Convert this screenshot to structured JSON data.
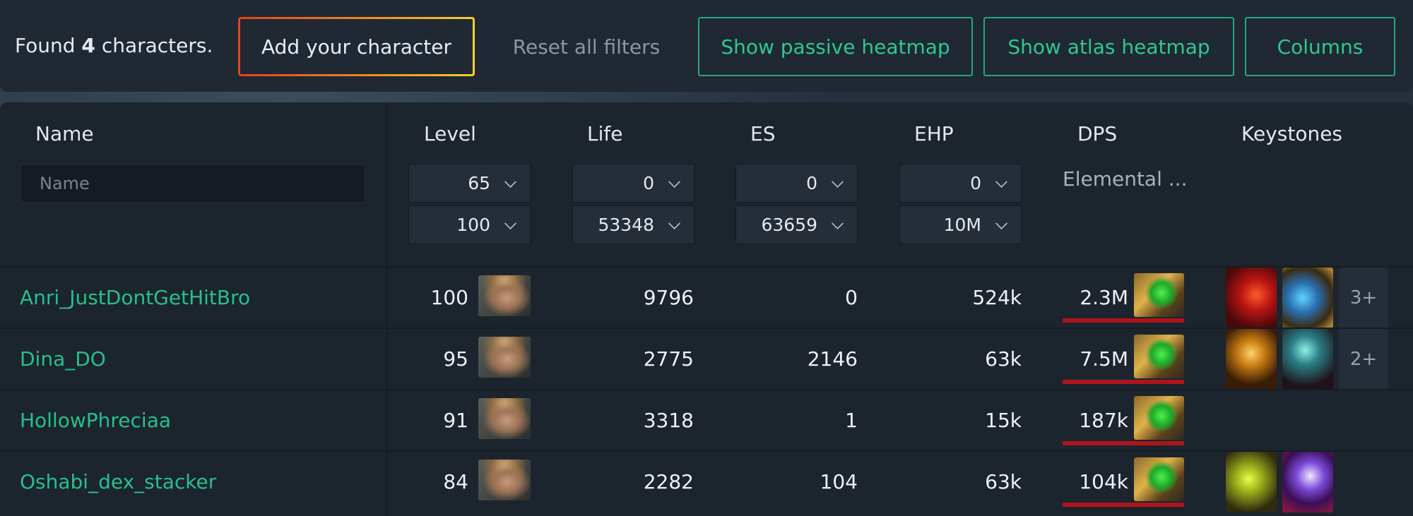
{
  "toolbar": {
    "found_prefix": "Found",
    "found_count": "4",
    "found_suffix": "characters.",
    "add_label": "Add your character",
    "reset_label": "Reset all filters",
    "passive_label": "Show passive heatmap",
    "atlas_label": "Show atlas heatmap",
    "columns_label": "Columns"
  },
  "table": {
    "headers": {
      "name": "Name",
      "level": "Level",
      "life": "Life",
      "es": "ES",
      "ehp": "EHP",
      "dps": "DPS",
      "keystones": "Keystones"
    },
    "filters": {
      "name_placeholder": "Name",
      "level_min": "65",
      "level_max": "100",
      "life_min": "0",
      "life_max": "53348",
      "es_min": "0",
      "es_max": "63659",
      "ehp_min": "0",
      "ehp_max": "10M",
      "dps_filter": "Elemental ..."
    },
    "rows": [
      {
        "name": "Anri_JustDontGetHitBro",
        "level": "100",
        "life": "9796",
        "es": "0",
        "ehp": "524k",
        "dps": "2.3M",
        "keystones": [
          "red-figure-keystone-icon",
          "blue-axe-keystone-icon"
        ],
        "more": "3+"
      },
      {
        "name": "Dina_DO",
        "level": "95",
        "life": "2775",
        "es": "2146",
        "ehp": "63k",
        "dps": "7.5M",
        "keystones": [
          "golden-figure-keystone-icon",
          "teal-swirl-keystone-icon"
        ],
        "more": "2+"
      },
      {
        "name": "HollowPhreciaa",
        "level": "91",
        "life": "3318",
        "es": "1",
        "ehp": "15k",
        "dps": "187k",
        "keystones": [],
        "more": ""
      },
      {
        "name": "Oshabi_dex_stacker",
        "level": "84",
        "life": "2282",
        "es": "104",
        "ehp": "63k",
        "dps": "104k",
        "keystones": [
          "green-yellow-keystone-icon",
          "purple-blade-keystone-icon"
        ],
        "more": ""
      }
    ]
  }
}
